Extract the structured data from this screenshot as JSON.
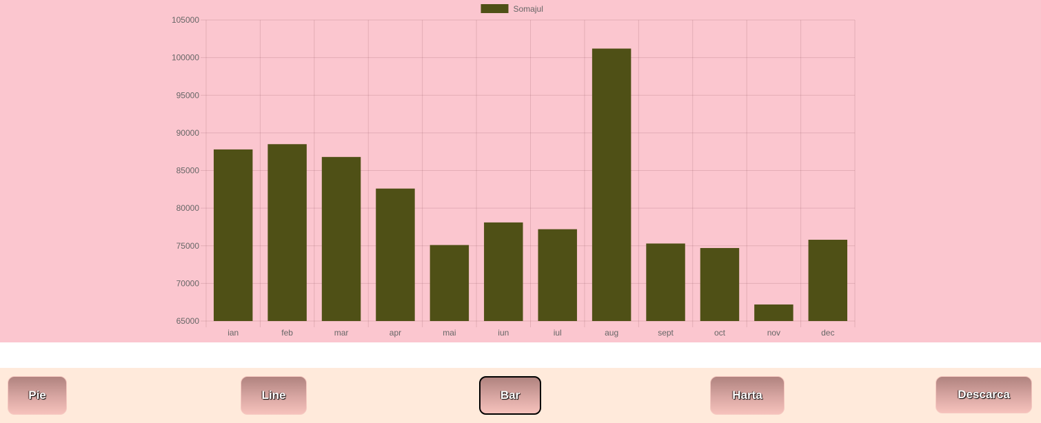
{
  "chart_data": {
    "type": "bar",
    "categories": [
      "ian",
      "feb",
      "mar",
      "apr",
      "mai",
      "iun",
      "iul",
      "aug",
      "sept",
      "oct",
      "nov",
      "dec"
    ],
    "series": [
      {
        "name": "Somajul",
        "color": "#4f5016",
        "values": [
          87800,
          88500,
          86800,
          82600,
          75100,
          78100,
          77200,
          101200,
          75300,
          74700,
          67200,
          75800
        ]
      }
    ],
    "ylim": [
      65000,
      105000
    ],
    "yticks": [
      105000,
      100000,
      95000,
      90000,
      85000,
      80000,
      75000,
      70000,
      65000
    ],
    "grid": true,
    "legend_position": "top",
    "background": "#fbc6cf"
  },
  "buttons": {
    "pie": "Pie",
    "line": "Line",
    "bar": "Bar",
    "harta": "Harta",
    "descarca": "Descarca",
    "active": "bar"
  },
  "colors": {
    "chart_background": "#fbc6cf",
    "button_bar_background": "#ffeadb",
    "bar_fill": "#4f5016"
  }
}
